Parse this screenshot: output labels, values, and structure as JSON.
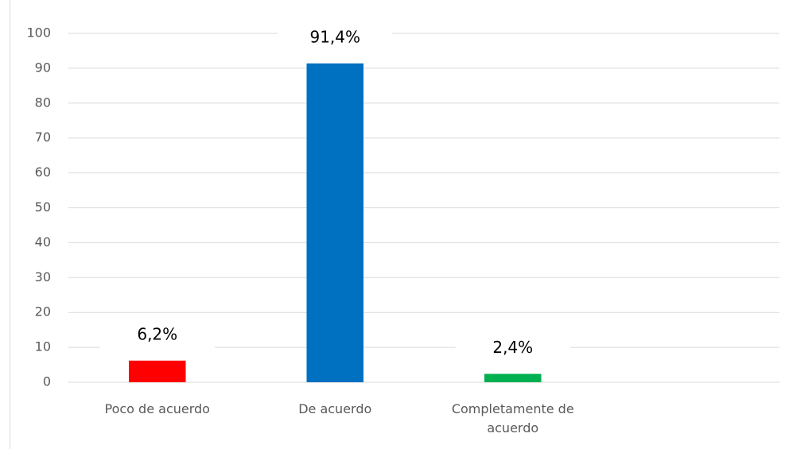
{
  "chart_data": {
    "type": "bar",
    "categories": [
      "Poco de acuerdo",
      "De acuerdo",
      "Completamente de acuerdo",
      null
    ],
    "values": [
      6.2,
      91.4,
      2.4,
      null
    ],
    "value_labels": [
      "6,2%",
      "91,4%",
      "2,4%",
      null
    ],
    "colors": [
      "#ff0000",
      "#0070c0",
      "#00b050"
    ],
    "ylim": [
      0,
      100
    ],
    "yticks": [
      0,
      10,
      20,
      30,
      40,
      50,
      60,
      70,
      80,
      90,
      100
    ],
    "grid": true
  }
}
